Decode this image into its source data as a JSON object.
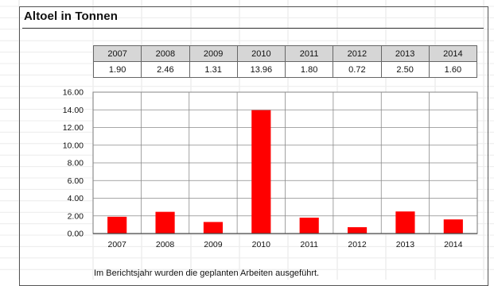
{
  "title": "Altoel in Tonnen",
  "table": {
    "years": [
      "2007",
      "2008",
      "2009",
      "2010",
      "2011",
      "2012",
      "2013",
      "2014"
    ],
    "values": [
      "1.90",
      "2.46",
      "1.31",
      "13.96",
      "1.80",
      "0.72",
      "2.50",
      "1.60"
    ]
  },
  "note": "Im Berichtsjahr wurden die geplanten Arbeiten ausgeführt.",
  "colors": {
    "bar": "#ff0000"
  },
  "chart_data": {
    "type": "bar",
    "categories": [
      "2007",
      "2008",
      "2009",
      "2010",
      "2011",
      "2012",
      "2013",
      "2014"
    ],
    "values": [
      1.9,
      2.46,
      1.31,
      13.96,
      1.8,
      0.72,
      2.5,
      1.6
    ],
    "title": "Altoel in Tonnen",
    "xlabel": "",
    "ylabel": "",
    "ylim": [
      0,
      16
    ],
    "yticks": [
      "0.00",
      "2.00",
      "4.00",
      "6.00",
      "8.00",
      "10.00",
      "12.00",
      "14.00",
      "16.00"
    ],
    "grid": true,
    "legend": "none"
  }
}
